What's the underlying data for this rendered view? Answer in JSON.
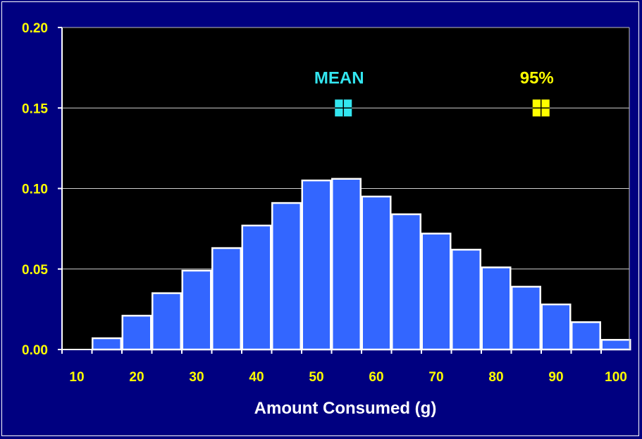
{
  "chart_data": {
    "type": "bar",
    "xlabel": "Amount Consumed (g)",
    "ylabel": "",
    "title": "",
    "xlim": [
      10,
      100
    ],
    "ylim": [
      0,
      0.2
    ],
    "x_ticks": [
      "10",
      "20",
      "30",
      "40",
      "50",
      "60",
      "70",
      "80",
      "90",
      "100"
    ],
    "y_ticks": [
      "0.00",
      "0.05",
      "0.10",
      "0.15",
      "0.20"
    ],
    "bins": [
      10,
      15,
      20,
      25,
      30,
      35,
      40,
      45,
      50,
      55,
      60,
      65,
      70,
      75,
      80,
      85,
      90,
      95,
      100
    ],
    "values": [
      0.0,
      0.007,
      0.021,
      0.035,
      0.049,
      0.063,
      0.077,
      0.091,
      0.105,
      0.106,
      0.095,
      0.084,
      0.072,
      0.062,
      0.051,
      0.039,
      0.028,
      0.017,
      0.006
    ],
    "grid": true,
    "bar_color": "#3366ff",
    "annotations": [
      {
        "label": "MEAN",
        "x": 54.5,
        "y": 0.15,
        "color": "#33e6f0"
      },
      {
        "label": "95%",
        "x": 87.5,
        "y": 0.15,
        "color": "#ffff00"
      }
    ]
  }
}
